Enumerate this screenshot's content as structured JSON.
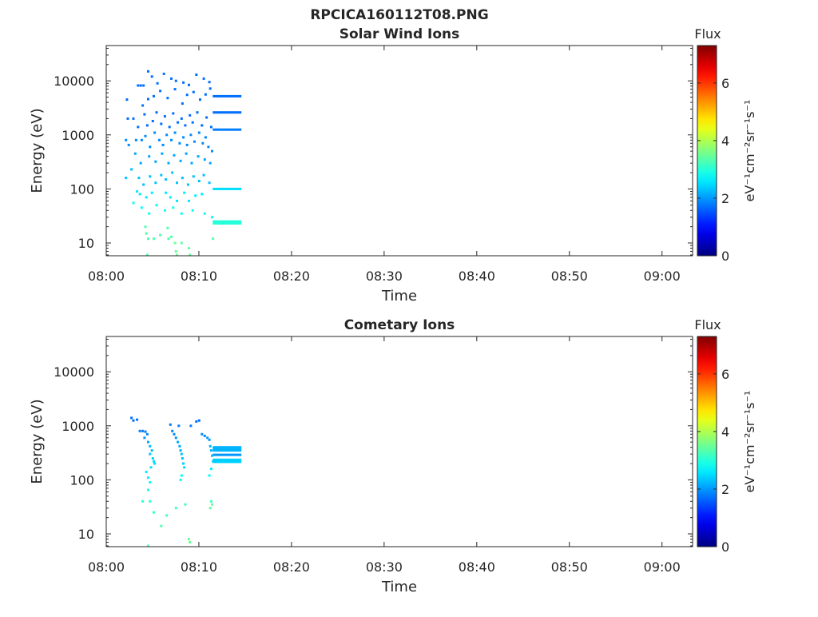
{
  "figure": {
    "title": "RPCICA160112T08.PNG"
  },
  "chart_data": [
    {
      "type": "heatmap",
      "title": "Solar Wind Ions",
      "xlabel": "Time",
      "ylabel": "Energy (eV)",
      "x_ticks": [
        "08:00",
        "08:10",
        "08:20",
        "08:30",
        "08:40",
        "08:50",
        "09:00"
      ],
      "xlim_minutes": [
        0,
        63.3
      ],
      "y_scale": "log",
      "y_ticks": [
        "10",
        "100",
        "1000",
        "10000"
      ],
      "ylim": [
        5.8,
        45000
      ],
      "colorbar": {
        "title": "Flux",
        "label": "eV⁻¹cm⁻²sr⁻¹s⁻¹",
        "ticks": [
          "0",
          "2",
          "4",
          "6"
        ],
        "range": [
          0,
          7.3
        ],
        "colormap": "jet"
      },
      "continuous_bands": [
        {
          "t_start": 11.5,
          "t_end": 14.6,
          "energy": 5200,
          "flux": 1.7
        },
        {
          "t_start": 11.5,
          "t_end": 14.6,
          "energy": 2600,
          "flux": 1.7
        },
        {
          "t_start": 11.5,
          "t_end": 14.6,
          "energy": 1250,
          "flux": 1.8
        },
        {
          "t_start": 11.5,
          "t_end": 14.6,
          "energy": 100,
          "flux": 2.5
        },
        {
          "t_start": 11.5,
          "t_end": 14.6,
          "energy": 25,
          "flux": 3.0
        },
        {
          "t_start": 11.5,
          "t_end": 14.6,
          "energy": 23,
          "flux": 3.0
        }
      ],
      "scatter_points": [
        [
          3.3,
          8200,
          1.7
        ],
        [
          3.6,
          8200,
          1.7
        ],
        [
          3.9,
          8200,
          1.7
        ],
        [
          4.4,
          15000,
          1.7
        ],
        [
          4.8,
          12000,
          1.7
        ],
        [
          5.4,
          9000,
          1.7
        ],
        [
          6.1,
          13500,
          1.7
        ],
        [
          6.9,
          11000,
          1.7
        ],
        [
          7.4,
          10000,
          1.7
        ],
        [
          8.2,
          9300,
          1.7
        ],
        [
          8.8,
          8400,
          1.7
        ],
        [
          9.6,
          13000,
          1.7
        ],
        [
          10.4,
          11000,
          1.7
        ],
        [
          11.0,
          9500,
          1.7
        ],
        [
          2.1,
          4500,
          1.7
        ],
        [
          3.8,
          3500,
          1.7
        ],
        [
          4.4,
          4600,
          1.7
        ],
        [
          5.0,
          5200,
          1.7
        ],
        [
          5.7,
          6500,
          1.7
        ],
        [
          6.5,
          4800,
          1.7
        ],
        [
          7.3,
          7000,
          1.7
        ],
        [
          8.1,
          3800,
          1.7
        ],
        [
          8.6,
          5500,
          1.7
        ],
        [
          9.3,
          6200,
          1.7
        ],
        [
          10.0,
          4500,
          1.7
        ],
        [
          10.6,
          5600,
          1.7
        ],
        [
          11.1,
          7200,
          1.7
        ],
        [
          2.2,
          2000,
          1.7
        ],
        [
          2.8,
          2000,
          1.7
        ],
        [
          3.3,
          1400,
          1.7
        ],
        [
          4.0,
          2400,
          1.7
        ],
        [
          4.3,
          1500,
          1.7
        ],
        [
          4.9,
          1800,
          1.7
        ],
        [
          5.3,
          2600,
          1.7
        ],
        [
          5.8,
          1600,
          1.7
        ],
        [
          6.2,
          2200,
          1.7
        ],
        [
          6.7,
          1400,
          1.7
        ],
        [
          7.1,
          2500,
          1.7
        ],
        [
          7.6,
          1700,
          1.7
        ],
        [
          8.0,
          2000,
          1.7
        ],
        [
          8.4,
          1500,
          1.7
        ],
        [
          8.9,
          2300,
          1.7
        ],
        [
          9.2,
          1700,
          1.7
        ],
        [
          9.7,
          2600,
          1.7
        ],
        [
          10.2,
          1500,
          1.7
        ],
        [
          10.7,
          2100,
          1.7
        ],
        [
          11.2,
          1400,
          1.7
        ],
        [
          2.0,
          800,
          1.9
        ],
        [
          2.3,
          650,
          1.9
        ],
        [
          3.1,
          800,
          1.9
        ],
        [
          3.7,
          800,
          1.9
        ],
        [
          4.1,
          950,
          1.9
        ],
        [
          4.6,
          600,
          1.9
        ],
        [
          5.1,
          1100,
          1.9
        ],
        [
          5.6,
          800,
          1.9
        ],
        [
          6.0,
          650,
          1.9
        ],
        [
          6.4,
          1000,
          1.9
        ],
        [
          6.9,
          800,
          1.9
        ],
        [
          7.3,
          1100,
          1.9
        ],
        [
          7.8,
          700,
          1.9
        ],
        [
          8.2,
          900,
          1.9
        ],
        [
          8.6,
          650,
          1.9
        ],
        [
          9.0,
          1000,
          1.9
        ],
        [
          9.4,
          750,
          1.9
        ],
        [
          9.9,
          1100,
          1.9
        ],
        [
          10.3,
          700,
          1.9
        ],
        [
          10.6,
          900,
          1.9
        ],
        [
          10.9,
          600,
          1.9
        ],
        [
          11.3,
          500,
          1.9
        ],
        [
          3.0,
          450,
          2.1
        ],
        [
          3.6,
          300,
          2.1
        ],
        [
          4.5,
          400,
          2.1
        ],
        [
          5.2,
          320,
          2.1
        ],
        [
          5.9,
          450,
          2.1
        ],
        [
          6.6,
          300,
          2.1
        ],
        [
          7.2,
          420,
          2.1
        ],
        [
          7.9,
          330,
          2.1
        ],
        [
          8.5,
          450,
          2.1
        ],
        [
          9.1,
          300,
          2.1
        ],
        [
          9.8,
          400,
          2.1
        ],
        [
          10.5,
          350,
          2.1
        ],
        [
          11.1,
          300,
          2.1
        ],
        [
          2.0,
          160,
          2.3
        ],
        [
          2.6,
          230,
          2.3
        ],
        [
          3.4,
          160,
          2.3
        ],
        [
          3.9,
          120,
          2.3
        ],
        [
          4.6,
          170,
          2.3
        ],
        [
          5.2,
          130,
          2.3
        ],
        [
          5.8,
          180,
          2.3
        ],
        [
          6.3,
          150,
          2.3
        ],
        [
          7.0,
          200,
          2.3
        ],
        [
          7.5,
          130,
          2.3
        ],
        [
          8.1,
          160,
          2.3
        ],
        [
          8.7,
          120,
          2.3
        ],
        [
          9.3,
          170,
          2.3
        ],
        [
          9.9,
          140,
          2.3
        ],
        [
          10.4,
          180,
          2.3
        ],
        [
          11.0,
          130,
          2.3
        ],
        [
          3.2,
          90,
          2.6
        ],
        [
          3.5,
          80,
          2.6
        ],
        [
          4.2,
          70,
          2.6
        ],
        [
          4.8,
          85,
          2.6
        ],
        [
          6.3,
          85,
          2.6
        ],
        [
          6.8,
          70,
          2.6
        ],
        [
          7.5,
          60,
          2.6
        ],
        [
          8.3,
          85,
          2.6
        ],
        [
          8.8,
          60,
          2.6
        ],
        [
          9.5,
          75,
          2.6
        ],
        [
          10.2,
          80,
          2.6
        ],
        [
          2.8,
          55,
          2.8
        ],
        [
          3.7,
          45,
          2.8
        ],
        [
          4.5,
          35,
          2.8
        ],
        [
          5.3,
          50,
          2.8
        ],
        [
          6.2,
          40,
          2.8
        ],
        [
          7.1,
          45,
          2.8
        ],
        [
          8.0,
          35,
          2.8
        ],
        [
          9.2,
          40,
          2.8
        ],
        [
          10.5,
          35,
          2.8
        ],
        [
          11.3,
          30,
          2.8
        ],
        [
          4.1,
          20,
          3.3
        ],
        [
          4.2,
          15,
          3.3
        ],
        [
          4.4,
          12,
          3.3
        ],
        [
          5.0,
          12,
          3.3
        ],
        [
          5.7,
          14,
          3.3
        ],
        [
          6.5,
          19,
          3.3
        ],
        [
          6.6,
          12,
          3.3
        ],
        [
          6.9,
          13,
          3.3
        ],
        [
          7.3,
          10,
          3.5
        ],
        [
          7.4,
          7,
          3.5
        ],
        [
          7.5,
          6,
          3.5
        ],
        [
          8.0,
          10,
          3.4
        ],
        [
          8.8,
          8,
          3.4
        ],
        [
          8.9,
          6,
          3.4
        ],
        [
          11.4,
          12,
          3.3
        ],
        [
          4.3,
          6,
          3.3
        ]
      ]
    },
    {
      "type": "heatmap",
      "title": "Cometary Ions",
      "xlabel": "Time",
      "ylabel": "Energy (eV)",
      "x_ticks": [
        "08:00",
        "08:10",
        "08:20",
        "08:30",
        "08:40",
        "08:50",
        "09:00"
      ],
      "xlim_minutes": [
        0,
        63.3
      ],
      "y_scale": "log",
      "y_ticks": [
        "10",
        "100",
        "1000",
        "10000"
      ],
      "ylim": [
        5.8,
        45000
      ],
      "colorbar": {
        "title": "Flux",
        "label": "eV⁻¹cm⁻²sr⁻¹s⁻¹",
        "ticks": [
          "0",
          "2",
          "4",
          "6"
        ],
        "range": [
          0,
          7.3
        ],
        "colormap": "jet"
      },
      "continuous_bands": [
        {
          "t_start": 11.5,
          "t_end": 14.6,
          "energy": 400,
          "flux": 2.2
        },
        {
          "t_start": 11.5,
          "t_end": 14.6,
          "energy": 370,
          "flux": 2.2
        },
        {
          "t_start": 11.5,
          "t_end": 14.6,
          "energy": 350,
          "flux": 2.2
        },
        {
          "t_start": 11.5,
          "t_end": 14.6,
          "energy": 290,
          "flux": 2.0
        },
        {
          "t_start": 11.5,
          "t_end": 14.6,
          "energy": 235,
          "flux": 2.4
        },
        {
          "t_start": 11.5,
          "t_end": 14.6,
          "energy": 215,
          "flux": 2.4
        }
      ],
      "scatter_points": [
        [
          2.6,
          1400,
          1.7
        ],
        [
          2.8,
          1250,
          1.7
        ],
        [
          3.2,
          1300,
          1.7
        ],
        [
          3.5,
          800,
          1.8
        ],
        [
          3.8,
          800,
          1.8
        ],
        [
          4.1,
          780,
          1.8
        ],
        [
          4.3,
          700,
          1.9
        ],
        [
          4.0,
          600,
          2.0
        ],
        [
          4.4,
          500,
          2.1
        ],
        [
          4.6,
          420,
          2.2
        ],
        [
          4.8,
          350,
          2.3
        ],
        [
          4.6,
          300,
          2.3
        ],
        [
          4.9,
          250,
          2.4
        ],
        [
          5.0,
          220,
          2.5
        ],
        [
          5.1,
          200,
          2.5
        ],
        [
          4.7,
          170,
          2.5
        ],
        [
          6.8,
          1050,
          1.8
        ],
        [
          7.0,
          800,
          1.9
        ],
        [
          7.2,
          700,
          1.9
        ],
        [
          7.4,
          600,
          2.0
        ],
        [
          7.6,
          500,
          2.1
        ],
        [
          7.8,
          420,
          2.1
        ],
        [
          7.9,
          350,
          2.2
        ],
        [
          8.0,
          300,
          2.3
        ],
        [
          8.1,
          250,
          2.3
        ],
        [
          8.2,
          200,
          2.4
        ],
        [
          8.3,
          170,
          2.5
        ],
        [
          7.7,
          1000,
          1.8
        ],
        [
          8.0,
          120,
          2.7
        ],
        [
          7.9,
          100,
          2.8
        ],
        [
          9.0,
          1000,
          1.8
        ],
        [
          9.6,
          1200,
          1.7
        ],
        [
          9.9,
          1250,
          1.7
        ],
        [
          10.2,
          700,
          1.9
        ],
        [
          10.5,
          650,
          1.9
        ],
        [
          10.8,
          600,
          2.0
        ],
        [
          11.0,
          550,
          2.0
        ],
        [
          11.1,
          420,
          2.2
        ],
        [
          11.2,
          350,
          2.2
        ],
        [
          11.3,
          280,
          2.3
        ],
        [
          11.4,
          220,
          2.4
        ],
        [
          11.2,
          160,
          2.6
        ],
        [
          11.0,
          120,
          2.7
        ],
        [
          11.2,
          40,
          3.2
        ],
        [
          11.3,
          35,
          3.5
        ],
        [
          11.1,
          30,
          3.4
        ],
        [
          4.2,
          140,
          2.6
        ],
        [
          4.4,
          110,
          2.7
        ],
        [
          4.6,
          90,
          2.8
        ],
        [
          4.4,
          65,
          2.9
        ],
        [
          3.8,
          40,
          3.0
        ],
        [
          4.6,
          40,
          3.0
        ],
        [
          5.0,
          25,
          3.1
        ],
        [
          5.8,
          14,
          3.3
        ],
        [
          6.4,
          22,
          3.2
        ],
        [
          7.4,
          30,
          3.2
        ],
        [
          8.4,
          35,
          3.2
        ],
        [
          8.8,
          8,
          3.5
        ],
        [
          8.9,
          7,
          3.5
        ],
        [
          4.4,
          6,
          3.3
        ]
      ]
    }
  ]
}
